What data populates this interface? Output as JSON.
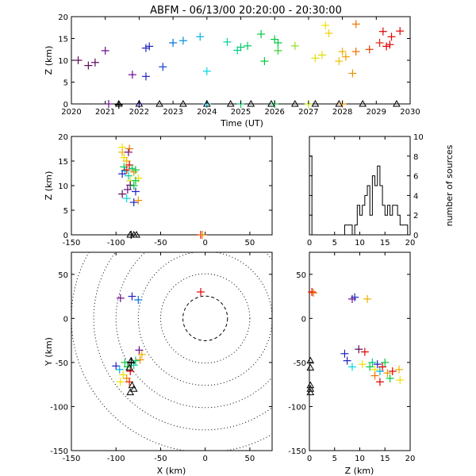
{
  "title": "ABFM - 06/13/00 20:20:00 - 20:30:00",
  "chart_data": [
    {
      "id": "time_height",
      "type": "scatter",
      "xlabel": "Time (UT)",
      "ylabel": "Z (km)",
      "x_tick_labels": [
        "2020",
        "2021",
        "2022",
        "2023",
        "2024",
        "2025",
        "2026",
        "2027",
        "2028",
        "2029",
        "2030"
      ],
      "y_tick_labels": [
        "0",
        "5",
        "10",
        "15",
        "20"
      ],
      "xlim": [
        2020,
        2030
      ],
      "ylim": [
        0,
        20
      ],
      "x_unit": "HHMM (20:20-20:30 UT)",
      "points": [
        {
          "t": 2020.2,
          "z": 10.0,
          "color": "#5a0a5a"
        },
        {
          "t": 2020.5,
          "z": 8.8,
          "color": "#5a0a5a"
        },
        {
          "t": 2020.7,
          "z": 9.5,
          "color": "#5a0a5a"
        },
        {
          "t": 2021.0,
          "z": 12.2,
          "color": "#6a0a8a"
        },
        {
          "t": 2021.1,
          "z": 0.0,
          "color": "#6a0a8a"
        },
        {
          "t": 2021.4,
          "z": -0.2,
          "color": "#000000"
        },
        {
          "t": 2021.8,
          "z": 6.7,
          "color": "#6a0a9a"
        },
        {
          "t": 2022.0,
          "z": 0.0,
          "color": "#4010b0"
        },
        {
          "t": 2022.2,
          "z": 12.8,
          "color": "#2020c0"
        },
        {
          "t": 2022.3,
          "z": 13.2,
          "color": "#2020c0"
        },
        {
          "t": 2022.2,
          "z": 6.3,
          "color": "#2020c0"
        },
        {
          "t": 2022.7,
          "z": 8.5,
          "color": "#1040d0"
        },
        {
          "t": 2023.0,
          "z": 14.0,
          "color": "#0070e0"
        },
        {
          "t": 2023.3,
          "z": 14.5,
          "color": "#0090e0"
        },
        {
          "t": 2023.8,
          "z": 15.4,
          "color": "#00b0e0"
        },
        {
          "t": 2024.0,
          "z": 7.5,
          "color": "#00d8e0"
        },
        {
          "t": 2024.0,
          "z": 0.0,
          "color": "#00c0e0"
        },
        {
          "t": 2024.6,
          "z": 14.2,
          "color": "#00d0a0"
        },
        {
          "t": 2024.9,
          "z": 12.3,
          "color": "#00d090"
        },
        {
          "t": 2025.0,
          "z": 13.0,
          "color": "#00c870"
        },
        {
          "t": 2025.2,
          "z": 13.3,
          "color": "#00c860"
        },
        {
          "t": 2025.0,
          "z": 0.0,
          "color": "#00c060"
        },
        {
          "t": 2025.6,
          "z": 16.0,
          "color": "#00c840"
        },
        {
          "t": 2025.7,
          "z": 9.8,
          "color": "#00c840"
        },
        {
          "t": 2026.0,
          "z": 14.8,
          "color": "#00c840"
        },
        {
          "t": 2026.1,
          "z": 14.0,
          "color": "#00c840"
        },
        {
          "t": 2026.1,
          "z": 12.2,
          "color": "#30d030"
        },
        {
          "t": 2026.0,
          "z": 0.0,
          "color": "#00c040"
        },
        {
          "t": 2026.6,
          "z": 13.3,
          "color": "#90e020"
        },
        {
          "t": 2027.0,
          "z": 0.0,
          "color": "#b0e000"
        },
        {
          "t": 2027.2,
          "z": 10.5,
          "color": "#e0e000"
        },
        {
          "t": 2027.4,
          "z": 11.2,
          "color": "#e0e000"
        },
        {
          "t": 2027.5,
          "z": 18.0,
          "color": "#f0e000"
        },
        {
          "t": 2027.6,
          "z": 16.2,
          "color": "#f0d000"
        },
        {
          "t": 2027.9,
          "z": 9.8,
          "color": "#f0c000"
        },
        {
          "t": 2028.0,
          "z": 12.0,
          "color": "#f0b000"
        },
        {
          "t": 2028.1,
          "z": 10.8,
          "color": "#f0a000"
        },
        {
          "t": 2028.0,
          "z": 0.0,
          "color": "#f09000"
        },
        {
          "t": 2028.3,
          "z": 7.0,
          "color": "#f09000"
        },
        {
          "t": 2028.4,
          "z": 12.0,
          "color": "#f07000"
        },
        {
          "t": 2028.4,
          "z": 18.3,
          "color": "#f07000"
        },
        {
          "t": 2028.8,
          "z": 12.5,
          "color": "#e04000"
        },
        {
          "t": 2029.1,
          "z": 14.0,
          "color": "#e02000"
        },
        {
          "t": 2029.2,
          "z": 16.6,
          "color": "#e00000"
        },
        {
          "t": 2029.3,
          "z": 13.2,
          "color": "#e00000"
        },
        {
          "t": 2029.4,
          "z": 13.6,
          "color": "#e00000"
        },
        {
          "t": 2029.45,
          "z": 15.4,
          "color": "#e00000"
        },
        {
          "t": 2029.7,
          "z": 16.7,
          "color": "#e00000"
        }
      ],
      "station_markers": [
        2021.4,
        2022.0,
        2022.6,
        2023.3,
        2024.0,
        2024.7,
        2025.3,
        2025.9,
        2026.6,
        2027.2,
        2027.9,
        2028.6,
        2029.6
      ]
    },
    {
      "id": "xz_projection",
      "type": "scatter",
      "xlabel": "",
      "ylabel": "Z (km)",
      "x_tick_labels": [
        "-150",
        "-100",
        "-50",
        "0",
        "50"
      ],
      "y_tick_labels": [
        "0",
        "5",
        "10",
        "15",
        "20"
      ],
      "xlim": [
        -150,
        75
      ],
      "ylim": [
        0,
        20
      ],
      "points": [
        {
          "x": -93,
          "z": 17.8,
          "color": "#f0e000"
        },
        {
          "x": -93,
          "z": 16.8,
          "color": "#f0b000"
        },
        {
          "x": -91,
          "z": 15.7,
          "color": "#f0e000"
        },
        {
          "x": -86,
          "z": 16.8,
          "color": "#6a0a8a"
        },
        {
          "x": -85,
          "z": 17.5,
          "color": "#f07000"
        },
        {
          "x": -88,
          "z": 15.0,
          "color": "#f0b000"
        },
        {
          "x": -91,
          "z": 13.8,
          "color": "#00c840"
        },
        {
          "x": -85,
          "z": 14.2,
          "color": "#e00000"
        },
        {
          "x": -90,
          "z": 13.0,
          "color": "#00b0e0"
        },
        {
          "x": -93,
          "z": 12.4,
          "color": "#2020c0"
        },
        {
          "x": -88,
          "z": 13.2,
          "color": "#e02000"
        },
        {
          "x": -82,
          "z": 13.5,
          "color": "#00c870"
        },
        {
          "x": -80,
          "z": 12.8,
          "color": "#f09000"
        },
        {
          "x": -78,
          "z": 13.2,
          "color": "#00c840"
        },
        {
          "x": -86,
          "z": 12.0,
          "color": "#00d0a0"
        },
        {
          "x": -84,
          "z": 11.0,
          "color": "#e0e000"
        },
        {
          "x": -75,
          "z": 11.5,
          "color": "#f0e000"
        },
        {
          "x": -78,
          "z": 11.0,
          "color": "#00c840"
        },
        {
          "x": -84,
          "z": 10.1,
          "color": "#5a0a5a"
        },
        {
          "x": -80,
          "z": 10.0,
          "color": "#00c840"
        },
        {
          "x": -87,
          "z": 9.2,
          "color": "#6a0a8a"
        },
        {
          "x": -93,
          "z": 8.3,
          "color": "#5a0a5a"
        },
        {
          "x": -78,
          "z": 8.8,
          "color": "#2020c0"
        },
        {
          "x": -88,
          "z": 7.4,
          "color": "#00d8e0"
        },
        {
          "x": -75,
          "z": 7.0,
          "color": "#f09000"
        },
        {
          "x": -80,
          "z": 6.6,
          "color": "#2020c0"
        },
        {
          "x": -83,
          "z": 0.0,
          "color": "#000000"
        },
        {
          "x": -5,
          "z": 0.0,
          "color": "#e00000"
        },
        {
          "x": -3,
          "z": 0.0,
          "color": "#f09000"
        }
      ],
      "station_markers": [
        -84,
        -80,
        -77
      ]
    },
    {
      "id": "height_histogram",
      "type": "bar",
      "xlabel": "",
      "ylabel": "number of sources",
      "x_tick_labels": [
        "0",
        "5",
        "10",
        "15",
        "20"
      ],
      "y_tick_labels": [
        "0",
        "2",
        "4",
        "6",
        "8",
        "10"
      ],
      "xlim": [
        0,
        20
      ],
      "ylim": [
        0,
        10
      ],
      "bin_width": 0.5,
      "bin_start": 0,
      "counts": [
        8,
        0,
        0,
        0,
        0,
        0,
        0,
        0,
        0,
        0,
        0,
        0,
        0,
        0,
        1,
        1,
        1,
        0,
        1,
        3,
        2,
        3,
        4,
        5,
        2,
        6,
        5,
        7,
        5,
        3,
        2,
        3,
        2,
        3,
        3,
        2,
        1,
        1,
        1,
        0
      ]
    },
    {
      "id": "plan_view",
      "type": "scatter",
      "xlabel": "X (km)",
      "ylabel": "Y (km)",
      "x_tick_labels": [
        "-150",
        "-100",
        "-50",
        "0",
        "50"
      ],
      "y_tick_labels": [
        "-150",
        "-100",
        "-50",
        "0",
        "50"
      ],
      "xlim": [
        -150,
        75
      ],
      "ylim": [
        -150,
        75
      ],
      "range_rings_km": [
        25,
        50,
        75,
        100,
        125,
        150
      ],
      "points": [
        {
          "x": -5,
          "y": 30,
          "color": "#e00000"
        },
        {
          "x": -95,
          "y": 23,
          "color": "#6a0a8a"
        },
        {
          "x": -82,
          "y": 25,
          "color": "#2020c0"
        },
        {
          "x": -75,
          "y": 21,
          "color": "#0070e0"
        },
        {
          "x": -74,
          "y": -36,
          "color": "#6a0a8a"
        },
        {
          "x": -71,
          "y": -41,
          "color": "#f0b000"
        },
        {
          "x": -73,
          "y": -47,
          "color": "#f09000"
        },
        {
          "x": -100,
          "y": -54,
          "color": "#2020c0"
        },
        {
          "x": -96,
          "y": -58,
          "color": "#00b0e0"
        },
        {
          "x": -90,
          "y": -50,
          "color": "#00c840"
        },
        {
          "x": -87,
          "y": -55,
          "color": "#00c840"
        },
        {
          "x": -84,
          "y": -60,
          "color": "#e00000"
        },
        {
          "x": -92,
          "y": -64,
          "color": "#f0e000"
        },
        {
          "x": -88,
          "y": -68,
          "color": "#f09000"
        },
        {
          "x": -80,
          "y": -53,
          "color": "#00d0a0"
        },
        {
          "x": -78,
          "y": -48,
          "color": "#00c870"
        },
        {
          "x": -85,
          "y": -72,
          "color": "#e02000"
        },
        {
          "x": -95,
          "y": -72,
          "color": "#f0e000"
        },
        {
          "x": -83,
          "y": -50,
          "color": "#000000"
        }
      ],
      "station_markers": [
        [
          -83,
          -48
        ],
        [
          -85,
          -56
        ],
        [
          -82,
          -76
        ],
        [
          -80,
          -80
        ],
        [
          -84,
          -84
        ]
      ]
    },
    {
      "id": "zy_projection",
      "type": "scatter",
      "xlabel": "Z (km)",
      "ylabel": "",
      "x_tick_labels": [
        "0",
        "5",
        "10",
        "15",
        "20"
      ],
      "y_tick_labels": [
        "-150",
        "-100",
        "-50",
        "0",
        "50"
      ],
      "xlim": [
        0,
        20
      ],
      "ylim": [
        -150,
        75
      ],
      "points": [
        {
          "z": 0.5,
          "y": 30,
          "color": "#e00000"
        },
        {
          "z": 0.8,
          "y": 29,
          "color": "#f07000"
        },
        {
          "z": 8.5,
          "y": 22,
          "color": "#6a0a8a"
        },
        {
          "z": 9.0,
          "y": 24,
          "color": "#2020c0"
        },
        {
          "z": 11.5,
          "y": 22,
          "color": "#f0b000"
        },
        {
          "z": 7.0,
          "y": -40,
          "color": "#2020c0"
        },
        {
          "z": 7.5,
          "y": -48,
          "color": "#2020c0"
        },
        {
          "z": 8.5,
          "y": -55,
          "color": "#00d8e0"
        },
        {
          "z": 9.8,
          "y": -35,
          "color": "#5a0a5a"
        },
        {
          "z": 10.5,
          "y": -52,
          "color": "#f0e000"
        },
        {
          "z": 11.0,
          "y": -38,
          "color": "#e00000"
        },
        {
          "z": 12.0,
          "y": -55,
          "color": "#00c840"
        },
        {
          "z": 12.5,
          "y": -50,
          "color": "#00c870"
        },
        {
          "z": 13.0,
          "y": -58,
          "color": "#f0e000"
        },
        {
          "z": 13.5,
          "y": -52,
          "color": "#2020c0"
        },
        {
          "z": 14.0,
          "y": -60,
          "color": "#00b0e0"
        },
        {
          "z": 14.5,
          "y": -55,
          "color": "#e00000"
        },
        {
          "z": 15.0,
          "y": -50,
          "color": "#00c840"
        },
        {
          "z": 15.5,
          "y": -62,
          "color": "#f09000"
        },
        {
          "z": 16.5,
          "y": -60,
          "color": "#e00000"
        },
        {
          "z": 17.8,
          "y": -58,
          "color": "#f0b000"
        },
        {
          "z": 13.0,
          "y": -65,
          "color": "#f07000"
        },
        {
          "z": 14.0,
          "y": -72,
          "color": "#e00000"
        },
        {
          "z": 16.0,
          "y": -68,
          "color": "#00c840"
        },
        {
          "z": 18.0,
          "y": -70,
          "color": "#f0e000"
        }
      ],
      "station_markers": [
        [
          0.2,
          -48
        ],
        [
          0.2,
          -56
        ],
        [
          0.2,
          -76
        ],
        [
          0.2,
          -80
        ],
        [
          0.2,
          -84
        ]
      ]
    }
  ]
}
